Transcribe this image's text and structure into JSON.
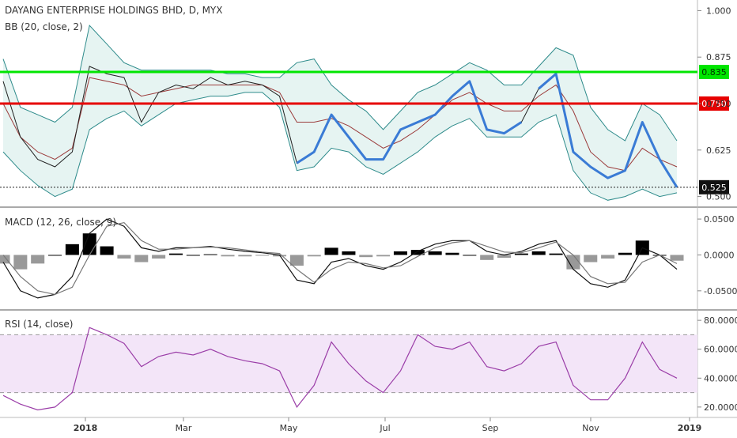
{
  "legends": {
    "price": "DAYANG ENTERPRISE HOLDINGS BHD, D, MYX",
    "bb": "BB (20, close, 2)",
    "macd": "MACD (12, 26, close, 9)",
    "rsi": "RSI (14, close)"
  },
  "colors": {
    "support_line": "#00e600",
    "resistance_line": "#e60000",
    "bb_band": "#2e8b8b",
    "bb_basis": "#9b3b3b",
    "bb_fill": "#e6f4f2",
    "trend_curve": "#3a7bd5",
    "rsi_band_fill": "#f3e5f8",
    "rsi_line": "#9b3ea8",
    "text": "#333333"
  },
  "chart_data": [
    {
      "type": "line",
      "panel": "price",
      "title": "DAYANG ENTERPRISE HOLDINGS BHD, D, MYX",
      "x_ticks": [
        "2018",
        "Mar",
        "May",
        "Jul",
        "Sep",
        "Nov",
        "2019"
      ],
      "y_ticks": [
        "1.000",
        "0.875",
        "0.750",
        "0.625",
        "0.500"
      ],
      "ylim": [
        0.48,
        1.02
      ],
      "horizontal_levels": [
        {
          "label": "0.835",
          "value": 0.835,
          "color": "#00e600"
        },
        {
          "label": "0.750",
          "value": 0.75,
          "color": "#e60000"
        }
      ],
      "last_price": {
        "label": "0.525",
        "value": 0.525
      },
      "bollinger": {
        "length": 20,
        "source": "close",
        "mult": 2
      },
      "close": [
        0.81,
        0.66,
        0.6,
        0.58,
        0.62,
        0.85,
        0.83,
        0.82,
        0.7,
        0.78,
        0.8,
        0.79,
        0.82,
        0.8,
        0.81,
        0.8,
        0.77,
        0.59,
        0.62,
        0.72,
        0.66,
        0.6,
        0.6,
        0.68,
        0.7,
        0.72,
        0.77,
        0.81,
        0.68,
        0.67,
        0.7,
        0.79,
        0.83,
        0.62,
        0.58,
        0.55,
        0.57,
        0.7,
        0.6,
        0.525
      ],
      "upper_band": [
        0.87,
        0.74,
        0.72,
        0.7,
        0.74,
        0.96,
        0.91,
        0.86,
        0.84,
        0.84,
        0.84,
        0.84,
        0.84,
        0.83,
        0.83,
        0.82,
        0.82,
        0.86,
        0.87,
        0.8,
        0.76,
        0.73,
        0.68,
        0.73,
        0.78,
        0.8,
        0.83,
        0.86,
        0.84,
        0.8,
        0.8,
        0.85,
        0.9,
        0.88,
        0.74,
        0.68,
        0.65,
        0.75,
        0.72,
        0.65
      ],
      "lower_band": [
        0.62,
        0.57,
        0.53,
        0.5,
        0.52,
        0.68,
        0.71,
        0.73,
        0.69,
        0.72,
        0.75,
        0.76,
        0.77,
        0.77,
        0.78,
        0.78,
        0.74,
        0.57,
        0.58,
        0.63,
        0.62,
        0.58,
        0.56,
        0.59,
        0.62,
        0.66,
        0.69,
        0.71,
        0.66,
        0.66,
        0.66,
        0.7,
        0.72,
        0.57,
        0.51,
        0.49,
        0.5,
        0.52,
        0.5,
        0.51
      ],
      "basis": [
        0.75,
        0.66,
        0.62,
        0.6,
        0.63,
        0.82,
        0.81,
        0.8,
        0.77,
        0.78,
        0.79,
        0.8,
        0.8,
        0.8,
        0.8,
        0.8,
        0.78,
        0.7,
        0.7,
        0.71,
        0.69,
        0.66,
        0.63,
        0.65,
        0.68,
        0.72,
        0.76,
        0.78,
        0.75,
        0.73,
        0.73,
        0.77,
        0.8,
        0.73,
        0.62,
        0.58,
        0.57,
        0.63,
        0.6,
        0.58
      ]
    },
    {
      "type": "line",
      "panel": "macd",
      "title": "MACD (12, 26, close, 9)",
      "y_ticks": [
        "0.0500",
        "0.0000",
        "-0.0500"
      ],
      "ylim": [
        -0.07,
        0.06
      ],
      "macd": [
        -0.01,
        -0.05,
        -0.06,
        -0.055,
        -0.03,
        0.03,
        0.05,
        0.04,
        0.01,
        0.005,
        0.01,
        0.01,
        0.012,
        0.008,
        0.005,
        0.003,
        0.0,
        -0.035,
        -0.04,
        -0.01,
        -0.005,
        -0.015,
        -0.02,
        -0.01,
        0.005,
        0.015,
        0.02,
        0.02,
        0.005,
        0.0,
        0.005,
        0.015,
        0.02,
        -0.02,
        -0.04,
        -0.045,
        -0.035,
        0.01,
        0.0,
        -0.02
      ],
      "signal": [
        0.0,
        -0.03,
        -0.05,
        -0.055,
        -0.045,
        0.0,
        0.04,
        0.045,
        0.02,
        0.008,
        0.008,
        0.01,
        0.011,
        0.01,
        0.007,
        0.004,
        0.002,
        -0.02,
        -0.038,
        -0.02,
        -0.01,
        -0.012,
        -0.018,
        -0.015,
        -0.002,
        0.01,
        0.017,
        0.02,
        0.012,
        0.004,
        0.003,
        0.01,
        0.018,
        0.0,
        -0.03,
        -0.04,
        -0.038,
        -0.01,
        0.0,
        -0.012
      ],
      "histogram": [
        -0.012,
        -0.02,
        -0.012,
        0.0,
        0.015,
        0.03,
        0.012,
        -0.005,
        -0.01,
        -0.005,
        0.002,
        0.0,
        0.001,
        -0.002,
        -0.002,
        -0.001,
        -0.002,
        -0.015,
        -0.002,
        0.01,
        0.005,
        -0.003,
        -0.002,
        0.005,
        0.007,
        0.005,
        0.003,
        0.0,
        -0.007,
        -0.004,
        0.002,
        0.005,
        0.002,
        -0.02,
        -0.01,
        -0.005,
        0.003,
        0.02,
        0.0,
        -0.008
      ]
    },
    {
      "type": "line",
      "panel": "rsi",
      "title": "RSI (14, close)",
      "y_ticks": [
        "80.0000",
        "60.0000",
        "40.0000",
        "20.0000"
      ],
      "ylim": [
        15,
        85
      ],
      "band": [
        30,
        70
      ],
      "rsi": [
        28,
        22,
        18,
        20,
        30,
        75,
        70,
        64,
        48,
        55,
        58,
        56,
        60,
        55,
        52,
        50,
        45,
        20,
        35,
        65,
        50,
        38,
        30,
        45,
        70,
        62,
        60,
        65,
        48,
        45,
        50,
        62,
        65,
        35,
        25,
        25,
        40,
        65,
        46,
        40
      ]
    }
  ]
}
